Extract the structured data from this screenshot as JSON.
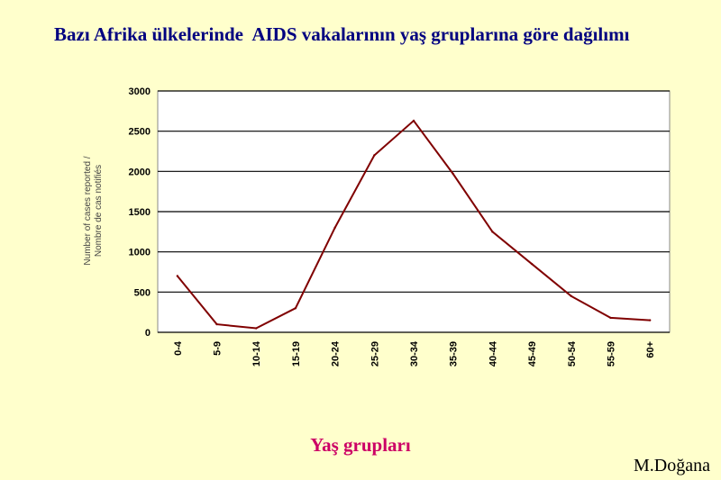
{
  "slide": {
    "title": "Bazı Afrika ülkelerinde  AIDS vakalarının yaş gruplarına göre dağılımı",
    "xgroup_label": "Yaş grupları",
    "author": "M.Doğana"
  },
  "chart_data": {
    "type": "line",
    "categories": [
      "0-4",
      "5-9",
      "10-14",
      "15-19",
      "20-24",
      "25-29",
      "30-34",
      "35-39",
      "40-44",
      "45-49",
      "50-54",
      "55-59",
      "60+"
    ],
    "series": [
      {
        "values": [
          700,
          100,
          50,
          300,
          1300,
          2200,
          2630,
          1970,
          1250,
          850,
          450,
          180,
          150
        ]
      }
    ],
    "ylabel_line1": "Number of cases reported /",
    "ylabel_line2": "Nombre de cas notifiés",
    "yticks": [
      0,
      500,
      1000,
      1500,
      2000,
      2500,
      3000
    ],
    "ylim": [
      0,
      3000
    ],
    "grid": true,
    "line_color": "#800000",
    "plot_background": "#ffffff",
    "grid_color": "#000000"
  }
}
